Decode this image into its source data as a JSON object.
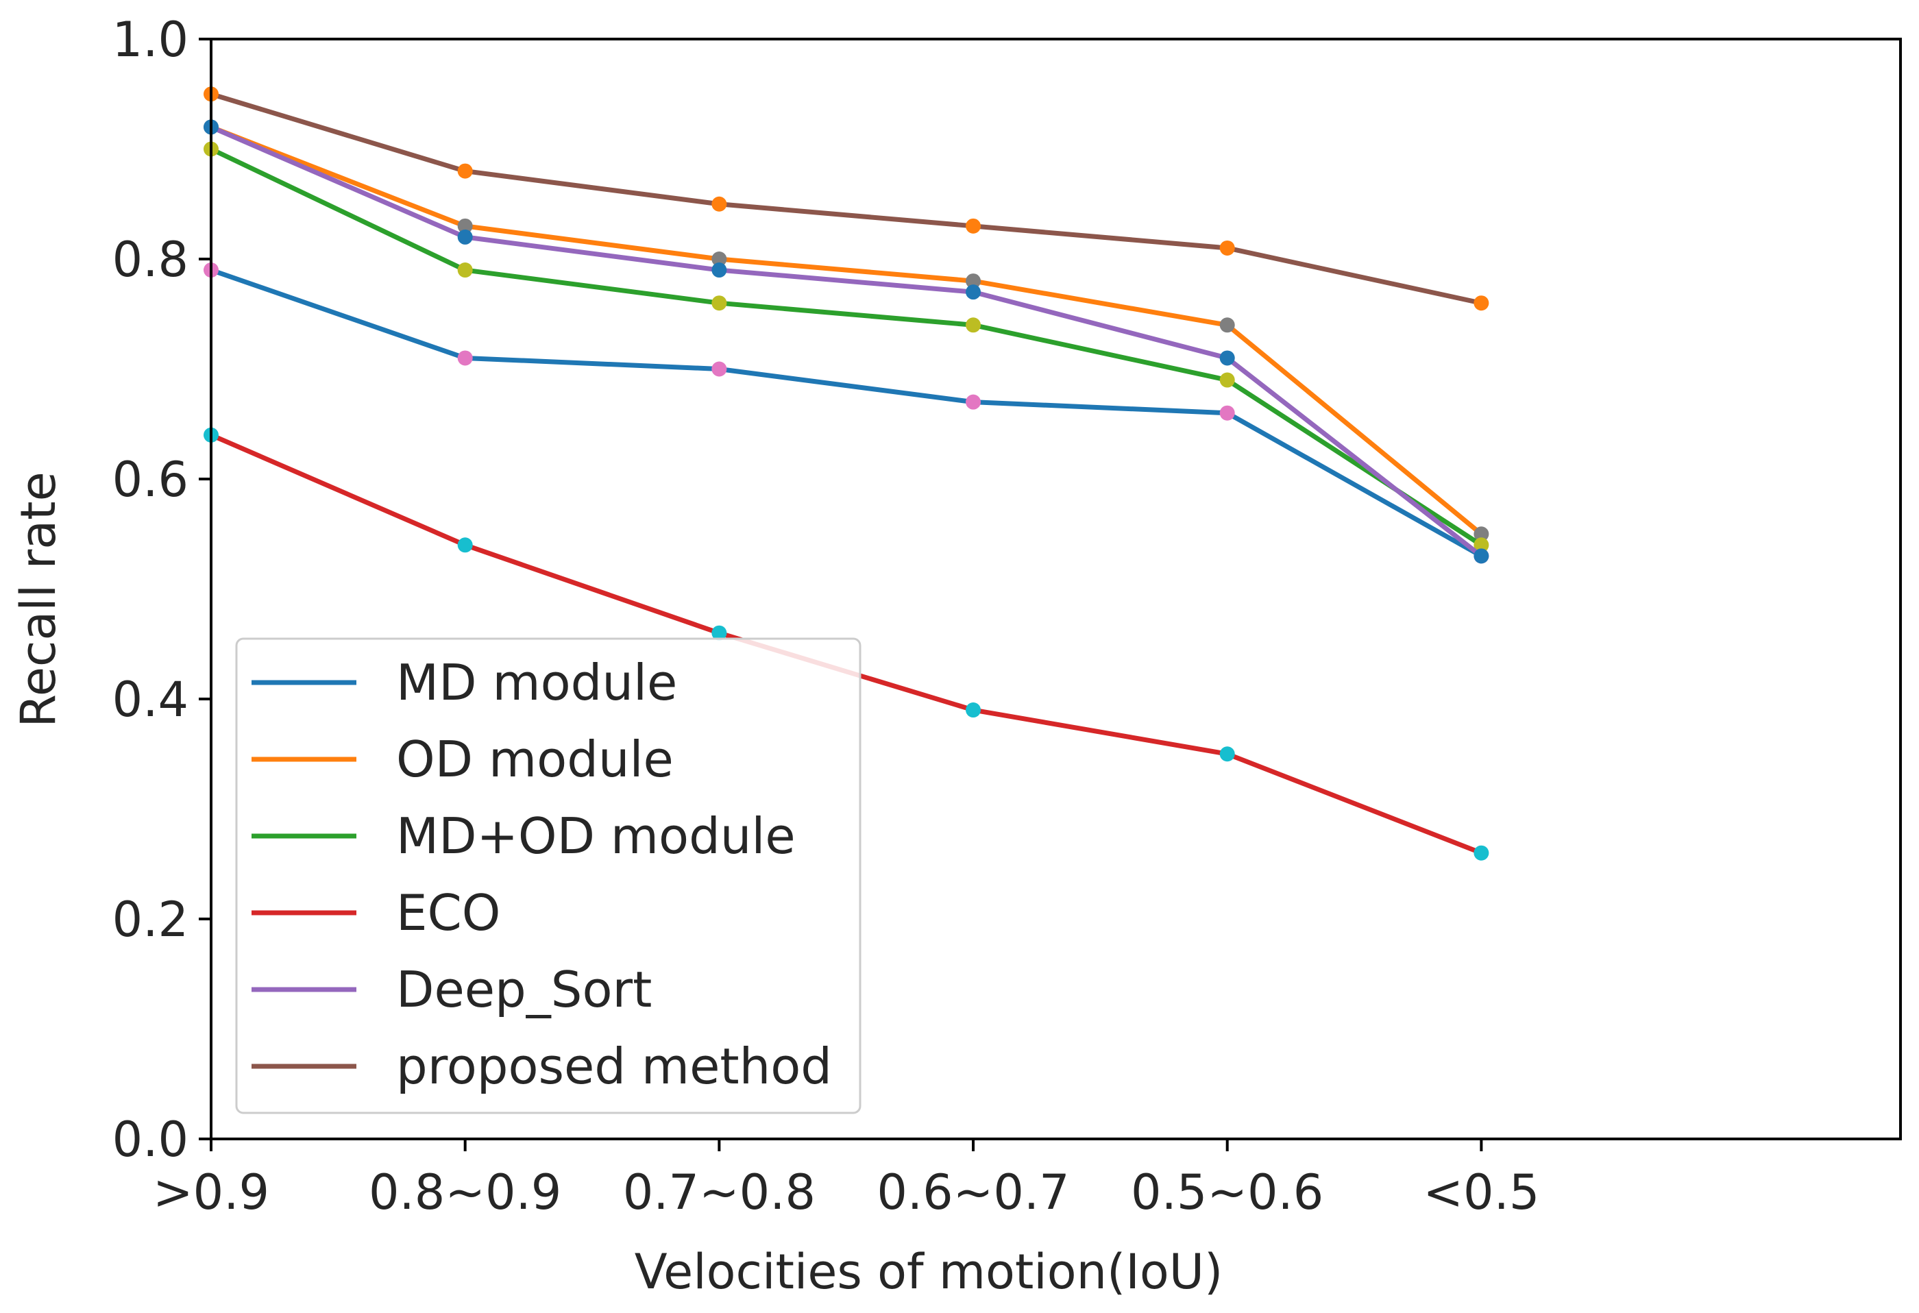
{
  "chart_data": {
    "type": "line",
    "title": "",
    "xlabel": "Velocities of motion(IoU)",
    "ylabel": "Recall rate",
    "categories": [
      ">0.9",
      "0.8~0.9",
      "0.7~0.8",
      "0.6~0.7",
      "0.5~0.6",
      "<0.5"
    ],
    "x_range": [
      0,
      6.65
    ],
    "ylim": [
      0.0,
      1.0
    ],
    "yticks": [
      "0.0",
      "0.2",
      "0.4",
      "0.6",
      "0.8",
      "1.0"
    ],
    "grid": false,
    "legend_position": "lower-left",
    "series": [
      {
        "name": "MD module",
        "color": "#1f77b4",
        "marker_color": "#e377c2",
        "values": [
          0.79,
          0.71,
          0.7,
          0.67,
          0.66,
          0.53
        ]
      },
      {
        "name": "OD module",
        "color": "#ff7f0e",
        "marker_color": "#7f7f7f",
        "values": [
          0.92,
          0.83,
          0.8,
          0.78,
          0.74,
          0.55
        ]
      },
      {
        "name": "MD+OD module",
        "color": "#2ca02c",
        "marker_color": "#bcbd22",
        "values": [
          0.9,
          0.79,
          0.76,
          0.74,
          0.69,
          0.54
        ]
      },
      {
        "name": "ECO",
        "color": "#d62728",
        "marker_color": "#17becf",
        "values": [
          0.64,
          0.54,
          0.46,
          0.39,
          0.35,
          0.26
        ]
      },
      {
        "name": "Deep_Sort",
        "color": "#9467bd",
        "marker_color": "#1f77b4",
        "values": [
          0.92,
          0.82,
          0.79,
          0.77,
          0.71,
          0.53
        ]
      },
      {
        "name": "proposed method",
        "color": "#8c564b",
        "marker_color": "#ff7f0e",
        "values": [
          0.95,
          0.88,
          0.85,
          0.83,
          0.81,
          0.76
        ]
      }
    ]
  }
}
